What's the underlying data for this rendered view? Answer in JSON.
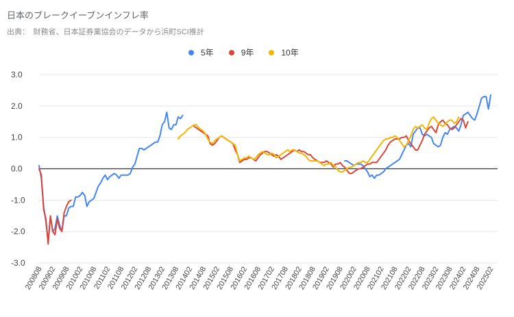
{
  "chart_data": {
    "type": "line",
    "title": "日本のブレークイーブンインフレ率",
    "subtitle": "出典：　財務省、日本証券業協会のデータから浜町SCI推計",
    "ylim": [
      -3.0,
      3.0
    ],
    "yticks": [
      "3.0",
      "2.0",
      "1.0",
      "0.0",
      "-1.0",
      "-2.0",
      "-3.0"
    ],
    "ytick_values": [
      3,
      2,
      1,
      0,
      -1,
      -2,
      -3
    ],
    "xticks": [
      "200808",
      "200902",
      "200908",
      "201002",
      "201008",
      "201102",
      "201108",
      "201202",
      "201208",
      "201302",
      "201308",
      "201402",
      "201408",
      "201502",
      "201508",
      "201602",
      "201608",
      "201702",
      "201708",
      "201802",
      "201808",
      "201902",
      "201908",
      "202002",
      "202008",
      "202102",
      "202108",
      "202202",
      "202208",
      "202302",
      "202308",
      "202402",
      "202408",
      "202502"
    ],
    "x_start": "2008-08",
    "x_end": "2025-05",
    "series": [
      {
        "name": "5年",
        "color": "#4285f4",
        "start": "2008-08",
        "values": [
          0.1,
          -0.3,
          -1.2,
          -1.7,
          -2.3,
          -1.5,
          -2.0,
          -1.9,
          -1.5,
          -1.8,
          -2.0,
          -1.5,
          -1.5,
          -1.25,
          -1.2,
          -1.2,
          -0.9,
          -0.9,
          -0.85,
          -0.75,
          -0.85,
          -1.2,
          -1.05,
          -1.0,
          -0.95,
          -0.75,
          -0.55,
          -0.45,
          -0.3,
          -0.2,
          -0.35,
          -0.25,
          -0.2,
          -0.15,
          -0.2,
          -0.3,
          -0.2,
          -0.2,
          -0.2,
          -0.2,
          -0.15,
          0.05,
          0.15,
          0.4,
          0.65,
          0.65,
          0.6,
          0.65,
          0.7,
          0.75,
          0.8,
          0.85,
          0.85,
          1.05,
          1.4,
          1.5,
          1.8,
          1.3,
          1.25,
          1.4,
          1.4,
          1.65,
          1.6,
          1.7,
          null,
          null,
          null,
          null,
          null,
          null,
          null,
          null,
          null,
          null,
          null,
          null,
          null,
          null,
          null,
          null,
          null,
          null,
          null,
          null,
          null,
          null,
          null,
          null,
          null,
          null,
          null,
          null,
          null,
          null,
          null,
          null,
          null,
          null,
          null,
          null,
          null,
          null,
          null,
          null,
          null,
          null,
          null,
          null,
          null,
          null,
          null,
          null,
          null,
          null,
          null,
          null,
          null,
          null,
          null,
          null,
          null,
          null,
          null,
          null,
          null,
          null,
          null,
          null,
          null,
          null,
          null,
          null,
          null,
          null,
          0.25,
          0.25,
          0.2,
          0.15,
          0.1,
          0.15,
          0.15,
          0.15,
          0.1,
          0.0,
          -0.1,
          -0.25,
          -0.2,
          -0.3,
          -0.2,
          -0.2,
          -0.15,
          -0.1,
          0.0,
          0.05,
          0.1,
          0.15,
          0.2,
          0.25,
          0.3,
          0.45,
          0.6,
          0.75,
          0.8,
          0.7,
          1.1,
          1.2,
          1.3,
          1.3,
          1.1,
          1.05,
          1.1,
          1.05,
          1.0,
          0.8,
          0.75,
          0.7,
          0.75,
          1.0,
          1.15,
          1.1,
          1.25,
          1.3,
          1.35,
          1.3,
          1.2,
          1.4,
          1.7,
          1.75,
          1.8,
          1.7,
          1.6,
          1.55,
          1.75,
          2.0,
          2.25,
          2.3,
          2.3,
          1.9,
          2.35
        ]
      },
      {
        "name": "9年",
        "color": "#db4437",
        "start": "2008-08",
        "values": [
          0.0,
          -0.2,
          -1.3,
          -1.6,
          -2.4,
          -1.5,
          -2.0,
          -2.1,
          -1.6,
          -1.9,
          -2.0,
          -1.4,
          -1.2,
          -1.05,
          -1.0,
          null,
          null,
          null,
          null,
          null,
          null,
          null,
          null,
          null,
          null,
          null,
          null,
          null,
          null,
          null,
          null,
          null,
          null,
          null,
          null,
          null,
          null,
          null,
          null,
          null,
          null,
          null,
          null,
          null,
          null,
          null,
          null,
          null,
          null,
          null,
          null,
          null,
          null,
          null,
          null,
          null,
          null,
          null,
          null,
          null,
          null,
          null,
          null,
          null,
          null,
          null,
          null,
          null,
          1.35,
          1.3,
          1.25,
          1.2,
          1.15,
          1.1,
          1.05,
          0.8,
          0.75,
          0.8,
          0.9,
          1.0,
          1.05,
          1.0,
          0.95,
          0.9,
          0.85,
          0.8,
          0.6,
          0.45,
          0.2,
          0.25,
          0.3,
          0.3,
          0.35,
          0.35,
          0.3,
          0.25,
          0.35,
          0.45,
          0.5,
          0.55,
          0.55,
          0.5,
          0.45,
          0.4,
          0.45,
          0.4,
          0.3,
          0.35,
          0.4,
          0.45,
          0.5,
          0.55,
          0.6,
          0.55,
          0.6,
          0.55,
          0.55,
          0.5,
          0.45,
          0.45,
          0.35,
          0.3,
          0.25,
          0.2,
          0.2,
          0.2,
          0.25,
          0.2,
          0.15,
          0.05,
          0.15,
          0.15,
          0.2,
          0.1,
          0.05,
          -0.05,
          -0.15,
          -0.15,
          -0.1,
          -0.05,
          0.0,
          0.0,
          0.05,
          0.1,
          0.15,
          0.15,
          0.2,
          0.2,
          0.2,
          0.3,
          0.4,
          0.5,
          0.6,
          0.75,
          0.85,
          0.9,
          0.95,
          0.95,
          0.95,
          1.0,
          1.0,
          1.05,
          0.9,
          0.8,
          0.7,
          0.6,
          0.6,
          0.75,
          0.9,
          1.1,
          1.2,
          1.3,
          1.35,
          1.25,
          1.15,
          1.4,
          1.5,
          1.55,
          1.45,
          1.4,
          1.3,
          1.25,
          1.3,
          1.4,
          1.5,
          1.6,
          1.55,
          1.3,
          1.5
        ]
      },
      {
        "name": "10年",
        "color": "#f4b400",
        "start": "2013-09",
        "values": [
          0.95,
          1.05,
          1.1,
          1.15,
          1.25,
          1.3,
          1.35,
          1.4,
          1.4,
          1.3,
          1.25,
          1.2,
          1.1,
          0.95,
          0.85,
          0.8,
          0.9,
          0.95,
          1.0,
          1.05,
          1.0,
          0.95,
          0.9,
          0.85,
          0.8,
          0.75,
          0.45,
          0.25,
          0.3,
          0.35,
          0.35,
          0.4,
          0.35,
          0.3,
          0.35,
          0.45,
          0.5,
          0.55,
          0.5,
          0.45,
          0.45,
          0.5,
          0.45,
          0.35,
          0.4,
          0.45,
          0.5,
          0.55,
          0.6,
          0.55,
          0.6,
          0.6,
          0.55,
          0.5,
          0.5,
          0.45,
          0.4,
          0.3,
          0.25,
          0.25,
          0.25,
          0.25,
          0.2,
          0.15,
          0.1,
          0.15,
          0.15,
          0.2,
          0.1,
          0.05,
          -0.05,
          -0.1,
          -0.1,
          -0.05,
          0.0,
          0.05,
          0.05,
          0.1,
          0.15,
          0.2,
          0.2,
          0.25,
          0.2,
          0.2,
          0.3,
          0.4,
          0.5,
          0.6,
          0.7,
          0.8,
          0.9,
          0.95,
          0.95,
          1.0,
          1.0,
          1.05,
          1.0,
          0.9,
          0.8,
          0.7,
          0.75,
          0.9,
          1.05,
          1.25,
          1.35,
          1.3,
          1.35,
          1.4,
          1.3,
          1.25,
          1.45,
          1.6,
          1.65,
          1.55,
          1.45,
          1.4,
          1.35,
          1.4,
          1.5,
          1.55,
          1.55,
          1.45,
          1.5,
          1.65
        ]
      }
    ]
  }
}
